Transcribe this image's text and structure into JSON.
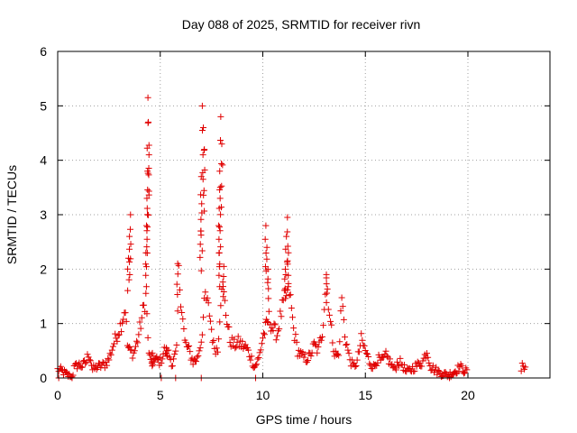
{
  "chart_data": {
    "type": "scatter",
    "title": "Day 088 of 2025, SRMTID for receiver rivn",
    "xlabel": "GPS time / hours",
    "ylabel": "SRMTID / TECUs",
    "xlim": [
      0,
      24
    ],
    "ylim": [
      0,
      6
    ],
    "x_ticks": [
      0,
      5,
      10,
      15,
      20
    ],
    "y_ticks": [
      0,
      1,
      2,
      3,
      4,
      5,
      6
    ],
    "grid": true,
    "marker": "+",
    "color": "#e00000",
    "series": [
      {
        "name": "SRMTID",
        "keypoints": [
          [
            0.0,
            0.15
          ],
          [
            0.1,
            0.15
          ],
          [
            0.7,
            0.0
          ],
          [
            0.8,
            0.18
          ],
          [
            1.0,
            0.25
          ],
          [
            1.2,
            0.22
          ],
          [
            1.4,
            0.3
          ],
          [
            1.5,
            0.45
          ],
          [
            1.6,
            0.35
          ],
          [
            1.7,
            0.15
          ],
          [
            1.9,
            0.2
          ],
          [
            2.1,
            0.22
          ],
          [
            2.3,
            0.25
          ],
          [
            2.5,
            0.35
          ],
          [
            2.7,
            0.6
          ],
          [
            2.9,
            0.8
          ],
          [
            3.1,
            1.0
          ],
          [
            3.3,
            1.3
          ],
          [
            3.4,
            0.6
          ],
          [
            3.5,
            0.5
          ],
          [
            3.7,
            0.45
          ],
          [
            3.9,
            0.7
          ],
          [
            4.1,
            1.1
          ],
          [
            4.3,
            1.5
          ],
          [
            4.45,
            0.4
          ],
          [
            4.7,
            0.35
          ],
          [
            5.0,
            0.3
          ],
          [
            5.2,
            0.5
          ],
          [
            5.4,
            0.45
          ],
          [
            5.6,
            0.25
          ],
          [
            5.8,
            0.5
          ],
          [
            5.9,
            1.9
          ],
          [
            6.0,
            1.5
          ],
          [
            6.2,
            0.65
          ],
          [
            6.4,
            0.5
          ],
          [
            6.6,
            0.3
          ],
          [
            6.8,
            0.35
          ],
          [
            7.0,
            0.7
          ],
          [
            7.2,
            1.5
          ],
          [
            7.4,
            1.2
          ],
          [
            7.6,
            0.6
          ],
          [
            7.8,
            0.5
          ],
          [
            8.0,
            1.8
          ],
          [
            8.2,
            1.2
          ],
          [
            8.4,
            0.7
          ],
          [
            8.6,
            0.6
          ],
          [
            8.8,
            0.65
          ],
          [
            9.0,
            0.6
          ],
          [
            9.2,
            0.55
          ],
          [
            9.4,
            0.4
          ],
          [
            9.6,
            0.2
          ],
          [
            9.8,
            0.35
          ],
          [
            10.0,
            0.75
          ],
          [
            10.3,
            1.1
          ],
          [
            10.5,
            0.9
          ],
          [
            10.7,
            0.8
          ],
          [
            10.9,
            1.2
          ],
          [
            11.1,
            1.5
          ],
          [
            11.3,
            1.6
          ],
          [
            11.5,
            0.9
          ],
          [
            11.7,
            0.5
          ],
          [
            11.9,
            0.4
          ],
          [
            12.1,
            0.35
          ],
          [
            12.3,
            0.4
          ],
          [
            12.5,
            0.6
          ],
          [
            12.7,
            0.5
          ],
          [
            12.9,
            0.85
          ],
          [
            13.1,
            1.85
          ],
          [
            13.3,
            1.0
          ],
          [
            13.5,
            0.45
          ],
          [
            13.7,
            0.4
          ],
          [
            13.85,
            1.5
          ],
          [
            14.0,
            0.8
          ],
          [
            14.2,
            0.4
          ],
          [
            14.4,
            0.2
          ],
          [
            14.6,
            0.3
          ],
          [
            14.8,
            0.7
          ],
          [
            15.0,
            0.5
          ],
          [
            15.2,
            0.3
          ],
          [
            15.4,
            0.2
          ],
          [
            15.6,
            0.35
          ],
          [
            15.8,
            0.3
          ],
          [
            16.0,
            0.4
          ],
          [
            16.2,
            0.3
          ],
          [
            16.4,
            0.15
          ],
          [
            16.6,
            0.3
          ],
          [
            16.8,
            0.25
          ],
          [
            17.0,
            0.1
          ],
          [
            17.2,
            0.15
          ],
          [
            17.4,
            0.2
          ],
          [
            17.6,
            0.25
          ],
          [
            17.8,
            0.3
          ],
          [
            18.0,
            0.5
          ],
          [
            18.2,
            0.2
          ],
          [
            18.4,
            0.15
          ],
          [
            18.6,
            0.1
          ],
          [
            18.8,
            0.08
          ],
          [
            19.0,
            0.05
          ],
          [
            19.3,
            0.1
          ],
          [
            19.6,
            0.2
          ],
          [
            19.8,
            0.15
          ],
          [
            20.0,
            0.1
          ],
          [
            22.6,
            0.15
          ],
          [
            22.7,
            0.25
          ],
          [
            22.8,
            0.2
          ]
        ],
        "spikes": [
          [
            3.55,
            3.0
          ],
          [
            3.5,
            2.6
          ],
          [
            4.4,
            5.15
          ],
          [
            4.42,
            4.7
          ],
          [
            4.45,
            4.1
          ],
          [
            4.38,
            3.8
          ],
          [
            4.35,
            3.3
          ],
          [
            4.33,
            2.8
          ],
          [
            4.3,
            2.3
          ],
          [
            7.05,
            5.0
          ],
          [
            7.1,
            4.6
          ],
          [
            7.15,
            4.2
          ],
          [
            7.0,
            3.7
          ],
          [
            7.02,
            3.2
          ],
          [
            6.98,
            2.7
          ],
          [
            7.95,
            4.8
          ],
          [
            8.0,
            4.3
          ],
          [
            7.9,
            3.8
          ],
          [
            7.92,
            3.3
          ],
          [
            7.85,
            2.8
          ],
          [
            7.88,
            2.3
          ],
          [
            10.15,
            2.8
          ],
          [
            10.2,
            2.4
          ],
          [
            10.25,
            2.0
          ],
          [
            11.2,
            2.95
          ],
          [
            11.15,
            2.6
          ],
          [
            11.25,
            2.3
          ],
          [
            11.1,
            2.0
          ],
          [
            13.1,
            1.9
          ],
          [
            3.45,
            2.2
          ],
          [
            5.85,
            2.1
          ],
          [
            8.1,
            2.05
          ],
          [
            4.6,
            0.3
          ],
          [
            5.3,
            0.55
          ]
        ],
        "zero_points": [
          0.05,
          0.7,
          5.05,
          5.75,
          7.0,
          9.65,
          19.1
        ]
      }
    ]
  }
}
